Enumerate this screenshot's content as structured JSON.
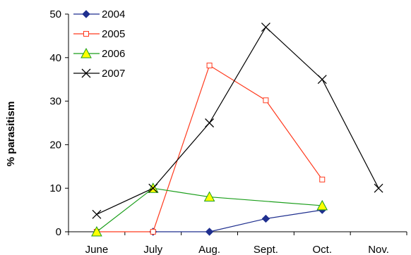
{
  "chart_data": {
    "type": "line",
    "title": "",
    "xlabel": "",
    "ylabel": "% parasitism",
    "categories": [
      "June",
      "July",
      "Aug.",
      "Sept.",
      "Oct.",
      "Nov."
    ],
    "ylim": [
      0,
      50
    ],
    "yticks": [
      0,
      10,
      20,
      30,
      40,
      50
    ],
    "grid": false,
    "legend": "top-left",
    "series": [
      {
        "name": "2004",
        "color": "#1f2f8f",
        "marker": "diamond",
        "values": [
          null,
          0,
          0,
          3,
          5,
          null
        ]
      },
      {
        "name": "2005",
        "color": "#ff3b1f",
        "marker": "square-open",
        "values": [
          0,
          0,
          38.2,
          30.2,
          12,
          null
        ]
      },
      {
        "name": "2006",
        "color": "#1a9e1a",
        "marker": "triangle",
        "values": [
          0,
          10,
          8,
          null,
          6,
          null
        ]
      },
      {
        "name": "2007",
        "color": "#000000",
        "marker": "x",
        "values": [
          4,
          10,
          25,
          47,
          35,
          10
        ]
      }
    ]
  }
}
